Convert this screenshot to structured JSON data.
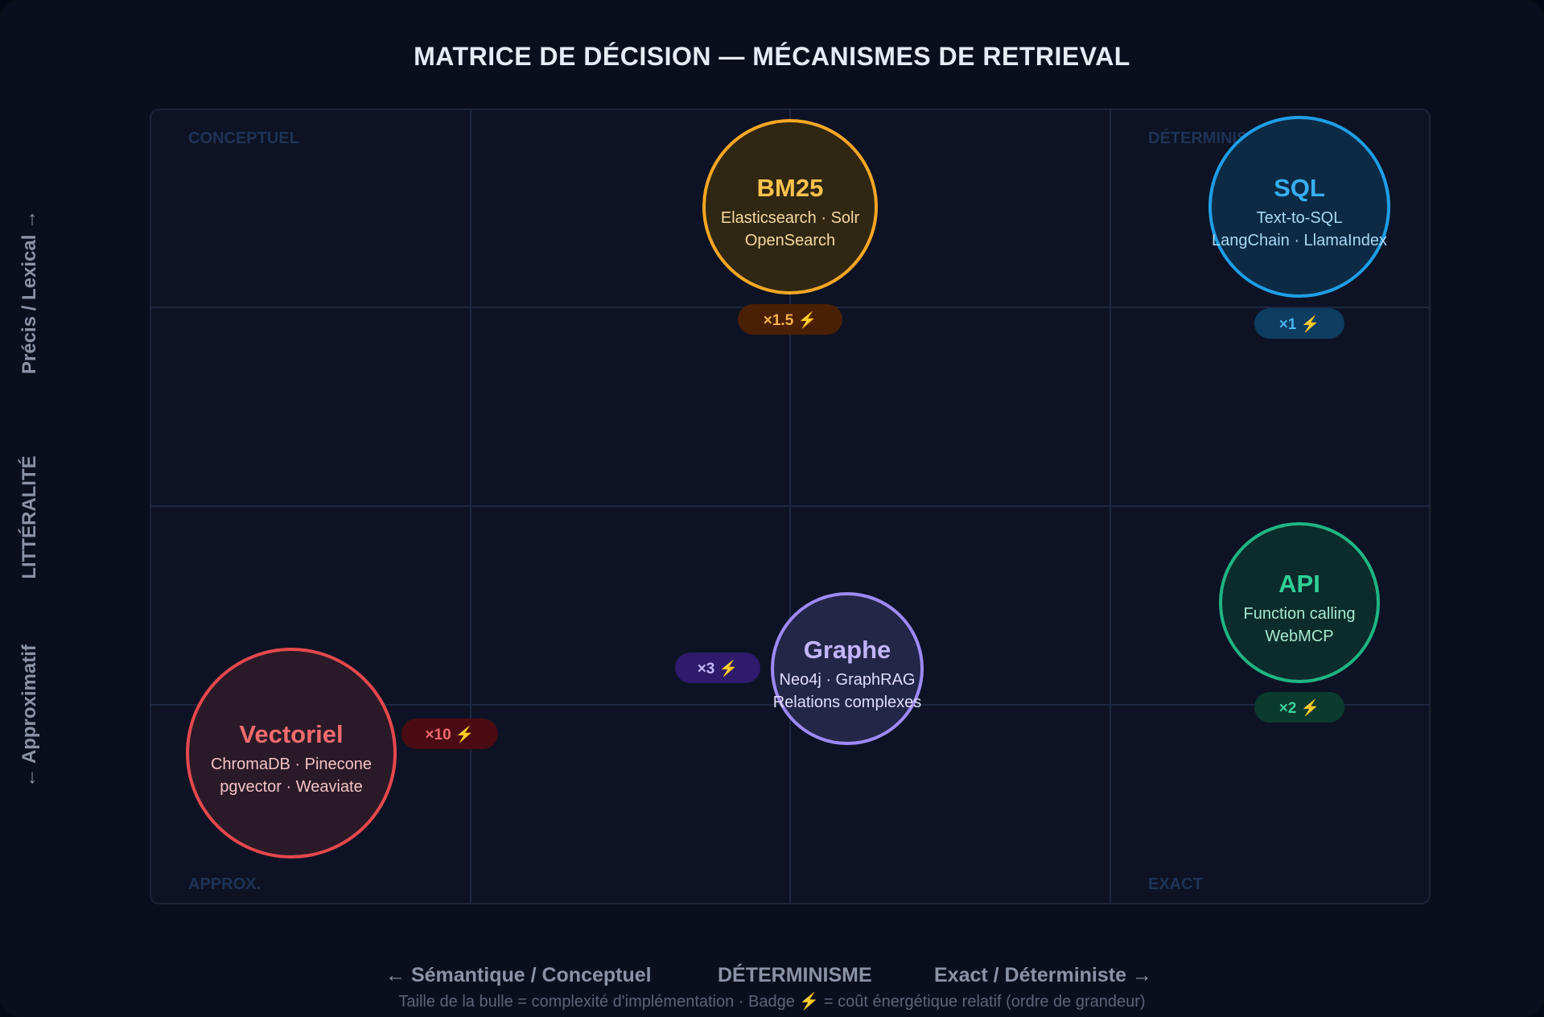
{
  "title": "MATRICE DE DÉCISION — MÉCANISMES DE RETRIEVAL",
  "y_axis": {
    "top": "Précis / Lexical →",
    "middle": "LITTÉRALITÉ",
    "bottom": "← Approximatif"
  },
  "x_axis": {
    "left": "← Sémantique / Conceptuel",
    "middle": "DÉTERMINISME",
    "right": "Exact / Déterministe →"
  },
  "footnote": "Taille de la bulle = complexité d'implémentation · Badge ⚡ = coût énergétique relatif (ordre de grandeur)",
  "corner_labels": {
    "top_left": "CONCEPTUEL",
    "top_right": "DÉTERMINISTE + LEXICAL",
    "bottom_left": "APPROX.",
    "bottom_right": "EXACT"
  },
  "chart_data": {
    "type": "scatter",
    "grid": true,
    "bubbles": [
      {
        "id": "bm25",
        "name": "BM25",
        "line1": "Elasticsearch · Solr",
        "line2": "OpenSearch",
        "badge": "×1.5 ⚡",
        "color": "#f5a623",
        "text_color": "#ffc34d",
        "sub_color": "#f7d9a3",
        "fill": "#302713",
        "badge_fill": "#4a2004",
        "badge_text": "#f5b04a"
      },
      {
        "id": "sql",
        "name": "SQL",
        "line1": "Text-to-SQL",
        "line2": "LangChain · LlamaIndex",
        "badge": "×1 ⚡",
        "color": "#1e9ee6",
        "text_color": "#38aef0",
        "sub_color": "#a9d9f5",
        "fill": "#0d2a45",
        "badge_fill": "#0d3d60",
        "badge_text": "#4ab3ef"
      },
      {
        "id": "api",
        "name": "API",
        "line1": "Function calling",
        "line2": "WebMCP",
        "badge": "×2 ⚡",
        "color": "#1fb584",
        "text_color": "#2fd196",
        "sub_color": "#a7e9cf",
        "fill": "#0c2c2b",
        "badge_fill": "#0a3b2e",
        "badge_text": "#3dd39c"
      },
      {
        "id": "graphe",
        "name": "Graphe",
        "line1": "Neo4j · GraphRAG",
        "line2": "Relations complexes",
        "badge": "×3 ⚡",
        "color": "#9d8af5",
        "text_color": "#c3b5ff",
        "sub_color": "#e1dcfb",
        "fill": "#232647",
        "badge_fill": "#2e1b6b",
        "badge_text": "#c6b9ff"
      },
      {
        "id": "vectoriel",
        "name": "Vectoriel",
        "line1": "ChromaDB · Pinecone",
        "line2": "pgvector · Weaviate",
        "badge": "×10 ⚡",
        "color": "#e5484d",
        "text_color": "#f26b6f",
        "sub_color": "#f3c3c5",
        "fill": "#2a1a28",
        "badge_fill": "#4a0c12",
        "badge_text": "#f06a6f"
      }
    ]
  }
}
